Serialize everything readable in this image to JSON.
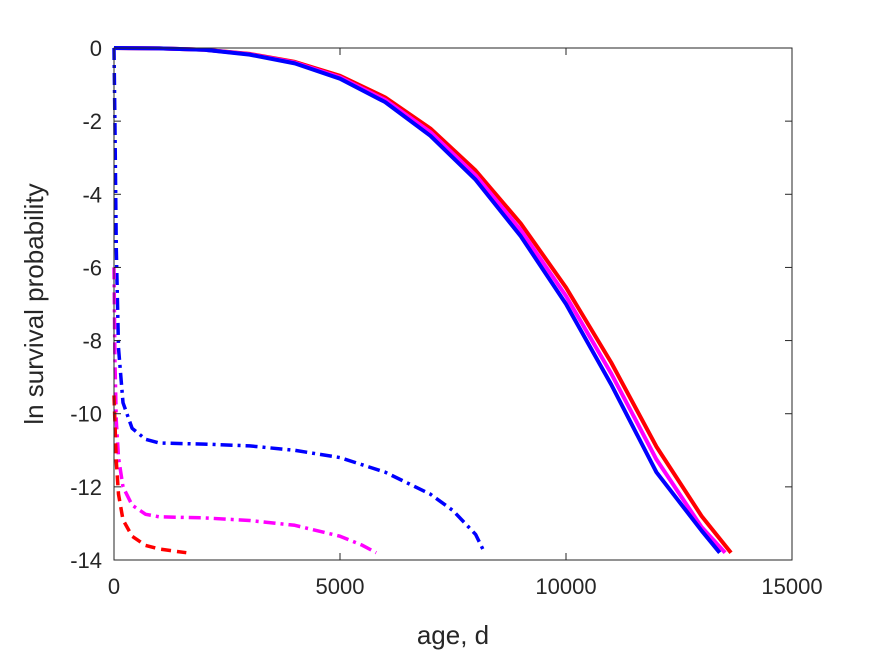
{
  "chart_data": {
    "type": "line",
    "title": "",
    "xlabel": "age, d",
    "ylabel": "ln survival probability",
    "xlim": [
      0,
      15000
    ],
    "ylim": [
      -14,
      0
    ],
    "xticks": [
      0,
      5000,
      10000,
      15000
    ],
    "xtick_labels": [
      "0",
      "5000",
      "10000",
      "15000"
    ],
    "yticks": [
      0,
      -2,
      -4,
      -6,
      -8,
      -10,
      -12,
      -14
    ],
    "ytick_labels": [
      "0",
      "-2",
      "-4",
      "-6",
      "-8",
      "-10",
      "-12",
      "-14"
    ],
    "grid": false,
    "legend": "none",
    "series": [
      {
        "color": "#ff0000",
        "style": "solid",
        "x": [
          0,
          1000,
          2000,
          3000,
          4000,
          5000,
          6000,
          7000,
          8000,
          9000,
          10000,
          11000,
          12000,
          13000,
          13650
        ],
        "y": [
          0,
          -0.01,
          -0.05,
          -0.16,
          -0.38,
          -0.76,
          -1.35,
          -2.2,
          -3.35,
          -4.8,
          -6.55,
          -8.6,
          -10.9,
          -12.8,
          -13.8
        ]
      },
      {
        "color": "#ff00ff",
        "style": "solid",
        "x": [
          0,
          1000,
          2000,
          3000,
          4000,
          5000,
          6000,
          7000,
          8000,
          9000,
          10000,
          11000,
          12000,
          13000,
          13520
        ],
        "y": [
          0,
          -0.01,
          -0.05,
          -0.17,
          -0.4,
          -0.8,
          -1.42,
          -2.3,
          -3.48,
          -4.98,
          -6.78,
          -8.9,
          -11.25,
          -13.1,
          -13.8
        ]
      },
      {
        "color": "#0000ff",
        "style": "solid",
        "x": [
          0,
          1000,
          2000,
          3000,
          4000,
          5000,
          6000,
          7000,
          8000,
          9000,
          10000,
          11000,
          12000,
          13000,
          13400
        ],
        "y": [
          0,
          -0.01,
          -0.05,
          -0.18,
          -0.42,
          -0.84,
          -1.48,
          -2.4,
          -3.6,
          -5.15,
          -7.0,
          -9.2,
          -11.6,
          -13.2,
          -13.8
        ]
      },
      {
        "color": "#0000ff",
        "style": "dashdot",
        "x": [
          0,
          20,
          50,
          100,
          200,
          400,
          700,
          1000,
          2000,
          3000,
          4000,
          5000,
          6000,
          7000,
          7500,
          8000,
          8200
        ],
        "y": [
          0,
          -2.0,
          -5.5,
          -8.2,
          -9.7,
          -10.4,
          -10.7,
          -10.8,
          -10.83,
          -10.88,
          -11.0,
          -11.2,
          -11.6,
          -12.2,
          -12.65,
          -13.3,
          -13.8
        ]
      },
      {
        "color": "#ff00ff",
        "style": "dashdot",
        "x": [
          0,
          20,
          50,
          100,
          200,
          400,
          700,
          1000,
          2000,
          3000,
          4000,
          5000,
          5500,
          5800
        ],
        "y": [
          -6.0,
          -8.5,
          -10.2,
          -11.2,
          -12.0,
          -12.5,
          -12.75,
          -12.82,
          -12.85,
          -12.92,
          -13.05,
          -13.35,
          -13.6,
          -13.8
        ]
      },
      {
        "color": "#ff0000",
        "style": "dashed",
        "x": [
          0,
          50,
          100,
          200,
          400,
          700,
          1000,
          1300,
          1600
        ],
        "y": [
          -9.5,
          -11.3,
          -12.2,
          -12.9,
          -13.35,
          -13.6,
          -13.7,
          -13.75,
          -13.8
        ]
      }
    ]
  }
}
